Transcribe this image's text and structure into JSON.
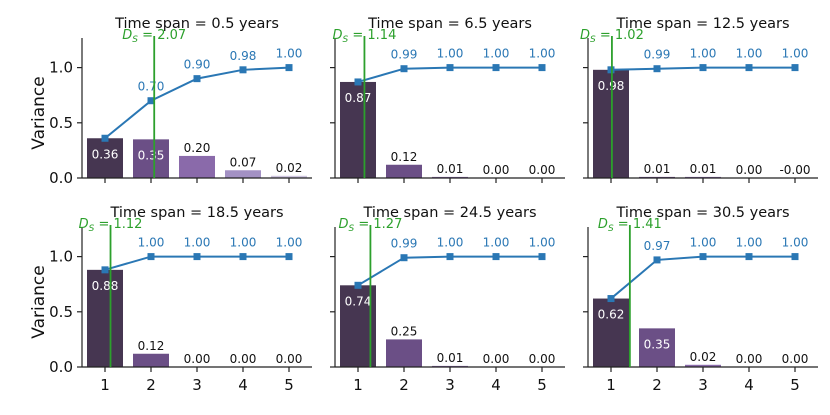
{
  "chart_data": {
    "type": "bar",
    "ylabel": "Variance",
    "ylim": [
      0,
      1.25
    ],
    "yticks": [
      0.0,
      0.5,
      1.0
    ],
    "ytick_labels": [
      "0.0",
      "0.5",
      "1.0"
    ],
    "xticks": [
      1,
      2,
      3,
      4,
      5
    ],
    "xtick_labels": [
      "1",
      "2",
      "3",
      "4",
      "5"
    ],
    "colors": {
      "bars": [
        "#463651",
        "#6b4f86",
        "#8a6aaa",
        "#a391c4",
        "#cfc6e0"
      ],
      "cumulative_line": "#2a77b4",
      "ds_line": "#2ca02c",
      "bar_label_inside": "#ffffff",
      "bar_label_outside": "#111111"
    },
    "panels": [
      {
        "title": "Time span = 0.5 years",
        "values": [
          0.36,
          0.35,
          0.2,
          0.07,
          0.02
        ],
        "value_labels": [
          "0.36",
          "0.35",
          "0.20",
          "0.07",
          "0.02"
        ],
        "cumulative": [
          0.36,
          0.7,
          0.9,
          0.98,
          1.0
        ],
        "cumulative_labels": [
          "",
          "0.70",
          "0.90",
          "0.98",
          "1.00"
        ],
        "ds": 2.07,
        "ds_label": "2.07"
      },
      {
        "title": "Time span = 6.5 years",
        "values": [
          0.87,
          0.12,
          0.01,
          0.0,
          0.0
        ],
        "value_labels": [
          "0.87",
          "0.12",
          "0.01",
          "0.00",
          "0.00"
        ],
        "cumulative": [
          0.87,
          0.99,
          1.0,
          1.0,
          1.0
        ],
        "cumulative_labels": [
          "",
          "0.99",
          "1.00",
          "1.00",
          "1.00"
        ],
        "ds": 1.14,
        "ds_label": "1.14"
      },
      {
        "title": "Time span = 12.5 years",
        "values": [
          0.98,
          0.01,
          0.01,
          0.0,
          0.0
        ],
        "value_labels": [
          "0.98",
          "0.01",
          "0.01",
          "0.00",
          "-0.00"
        ],
        "cumulative": [
          0.98,
          0.99,
          1.0,
          1.0,
          1.0
        ],
        "cumulative_labels": [
          "",
          "0.99",
          "1.00",
          "1.00",
          "1.00"
        ],
        "ds": 1.02,
        "ds_label": "1.02"
      },
      {
        "title": "Time span = 18.5 years",
        "values": [
          0.88,
          0.12,
          0.0,
          0.0,
          0.0
        ],
        "value_labels": [
          "0.88",
          "0.12",
          "0.00",
          "0.00",
          "0.00"
        ],
        "cumulative": [
          0.88,
          1.0,
          1.0,
          1.0,
          1.0
        ],
        "cumulative_labels": [
          "",
          "1.00",
          "1.00",
          "1.00",
          "1.00"
        ],
        "ds": 1.12,
        "ds_label": "1.12"
      },
      {
        "title": "Time span = 24.5 years",
        "values": [
          0.74,
          0.25,
          0.01,
          0.0,
          0.0
        ],
        "value_labels": [
          "0.74",
          "0.25",
          "0.01",
          "0.00",
          "0.00"
        ],
        "cumulative": [
          0.74,
          0.99,
          1.0,
          1.0,
          1.0
        ],
        "cumulative_labels": [
          "",
          "0.99",
          "1.00",
          "1.00",
          "1.00"
        ],
        "ds": 1.27,
        "ds_label": "1.27"
      },
      {
        "title": "Time span = 30.5 years",
        "values": [
          0.62,
          0.35,
          0.02,
          0.0,
          0.0
        ],
        "value_labels": [
          "0.62",
          "0.35",
          "0.02",
          "0.00",
          "0.00"
        ],
        "cumulative": [
          0.62,
          0.97,
          1.0,
          1.0,
          1.0
        ],
        "cumulative_labels": [
          "",
          "0.97",
          "1.00",
          "1.00",
          "1.00"
        ],
        "ds": 1.41,
        "ds_label": "1.41"
      }
    ]
  }
}
